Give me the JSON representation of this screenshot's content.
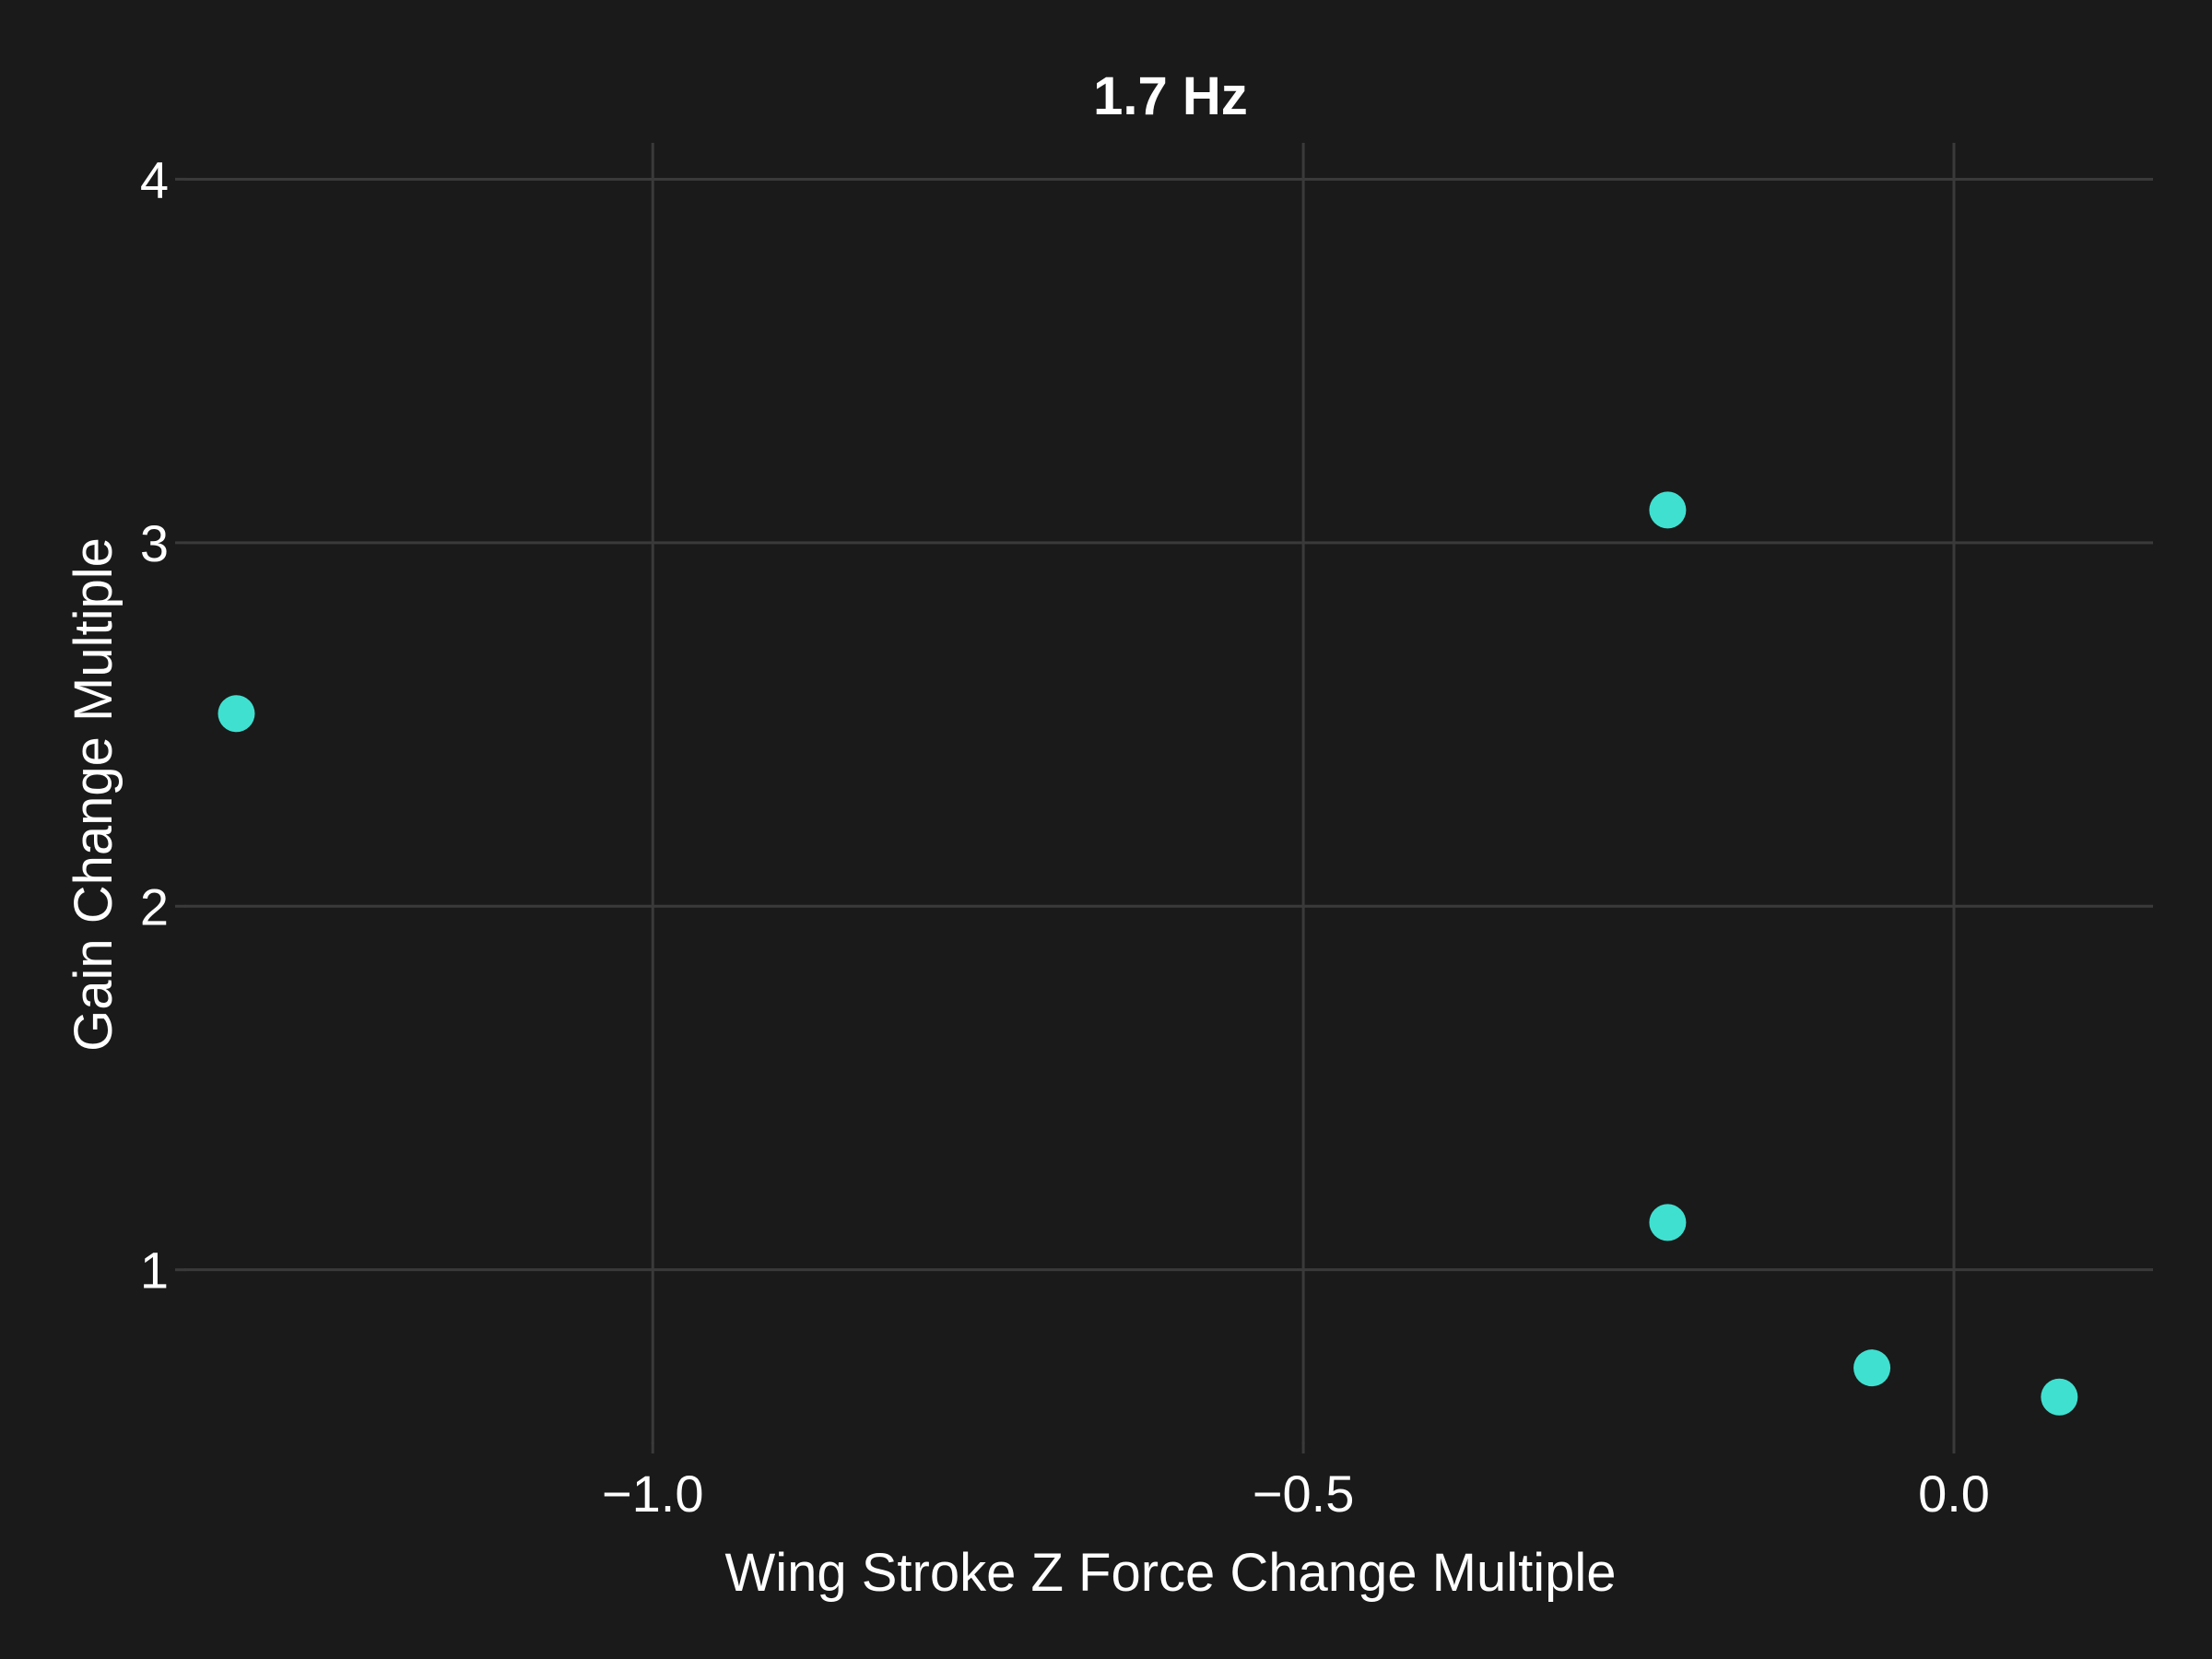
{
  "chart_data": {
    "type": "scatter",
    "title": "1.7 Hz",
    "xlabel": "Wing Stroke Z Force Change Multiple",
    "ylabel": "Gain Change Multiple",
    "xlim": [
      -1.36,
      0.153
    ],
    "ylim": [
      0.52,
      4.1
    ],
    "xticks": [
      -1.0,
      -0.5,
      0.0
    ],
    "xtick_labels": [
      "−1.0",
      "−0.5",
      "0.0"
    ],
    "yticks": [
      1,
      2,
      3,
      4
    ],
    "ytick_labels": [
      "1",
      "2",
      "3",
      "4"
    ],
    "grid": true,
    "point_color": "#40e0d0",
    "background_color": "#1a1a1a",
    "points": [
      {
        "x": -1.32,
        "y": 2.53
      },
      {
        "x": -0.22,
        "y": 3.09
      },
      {
        "x": -0.22,
        "y": 1.13
      },
      {
        "x": -0.063,
        "y": 0.73
      },
      {
        "x": 0.081,
        "y": 0.65
      }
    ]
  }
}
